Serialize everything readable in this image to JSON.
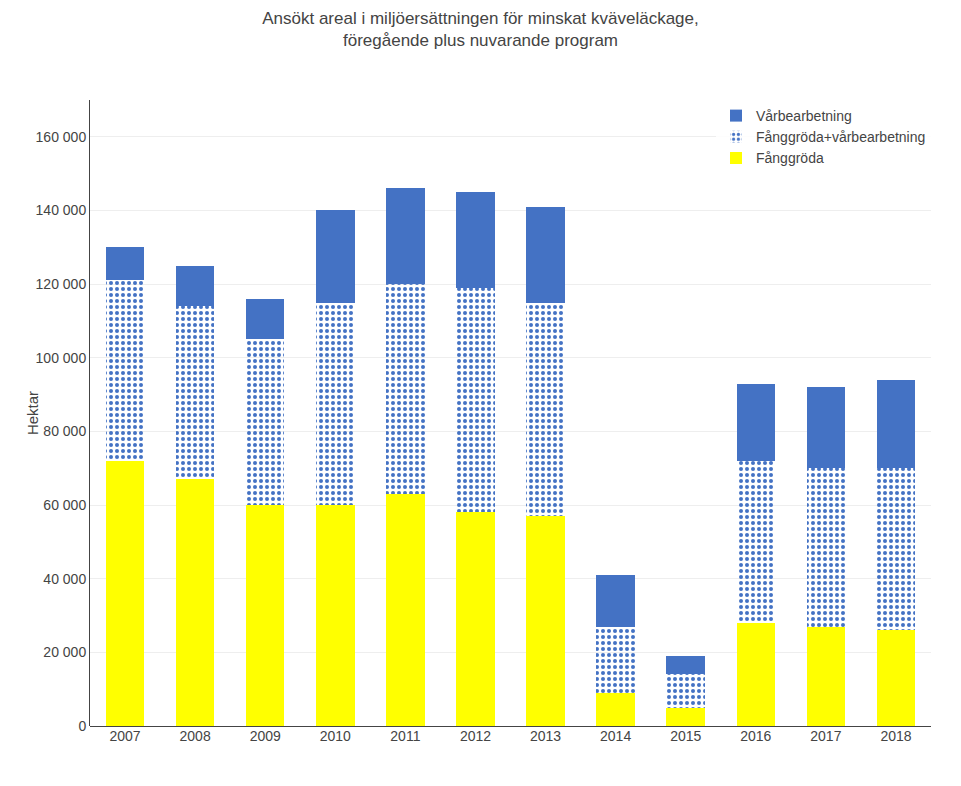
{
  "chart_data": {
    "type": "bar",
    "stacked": true,
    "title": "Ansökt areal i miljöersättningen för minskat kväveläckage,\nföregående plus nuvarande program",
    "ylabel": "Hektar",
    "categories": [
      "2007",
      "2008",
      "2009",
      "2010",
      "2011",
      "2012",
      "2013",
      "2014",
      "2015",
      "2016",
      "2017",
      "2018"
    ],
    "series": [
      {
        "name": "Fånggröda",
        "color": "#ffff00",
        "values": [
          72000,
          67000,
          60000,
          60000,
          63000,
          58000,
          57000,
          9000,
          5000,
          28000,
          27000,
          26000
        ]
      },
      {
        "name": "Fånggröda+vårbearbetning",
        "color": "#c8d400",
        "values": [
          49000,
          47000,
          45000,
          55000,
          57000,
          61000,
          58000,
          18000,
          9000,
          44000,
          43000,
          44000
        ]
      },
      {
        "name": "Vårbearbetning",
        "color": "#4472c4",
        "values": [
          9000,
          11000,
          11000,
          25000,
          26000,
          26000,
          26000,
          14000,
          5000,
          21000,
          22000,
          24000
        ]
      }
    ],
    "ylim": [
      0,
      170000
    ],
    "yticks": [
      0,
      {
        "value": 20000,
        "label": "20 000"
      },
      {
        "value": 40000,
        "label": "40 000"
      },
      {
        "value": 60000,
        "label": "60 000"
      },
      {
        "value": 80000,
        "label": "80 000"
      },
      {
        "value": 100000,
        "label": "100 000"
      },
      {
        "value": 120000,
        "label": "120 000"
      },
      {
        "value": 140000,
        "label": "140 000"
      },
      {
        "value": 160000,
        "label": "160 000"
      }
    ],
    "grid": true,
    "legend": "upper right"
  }
}
